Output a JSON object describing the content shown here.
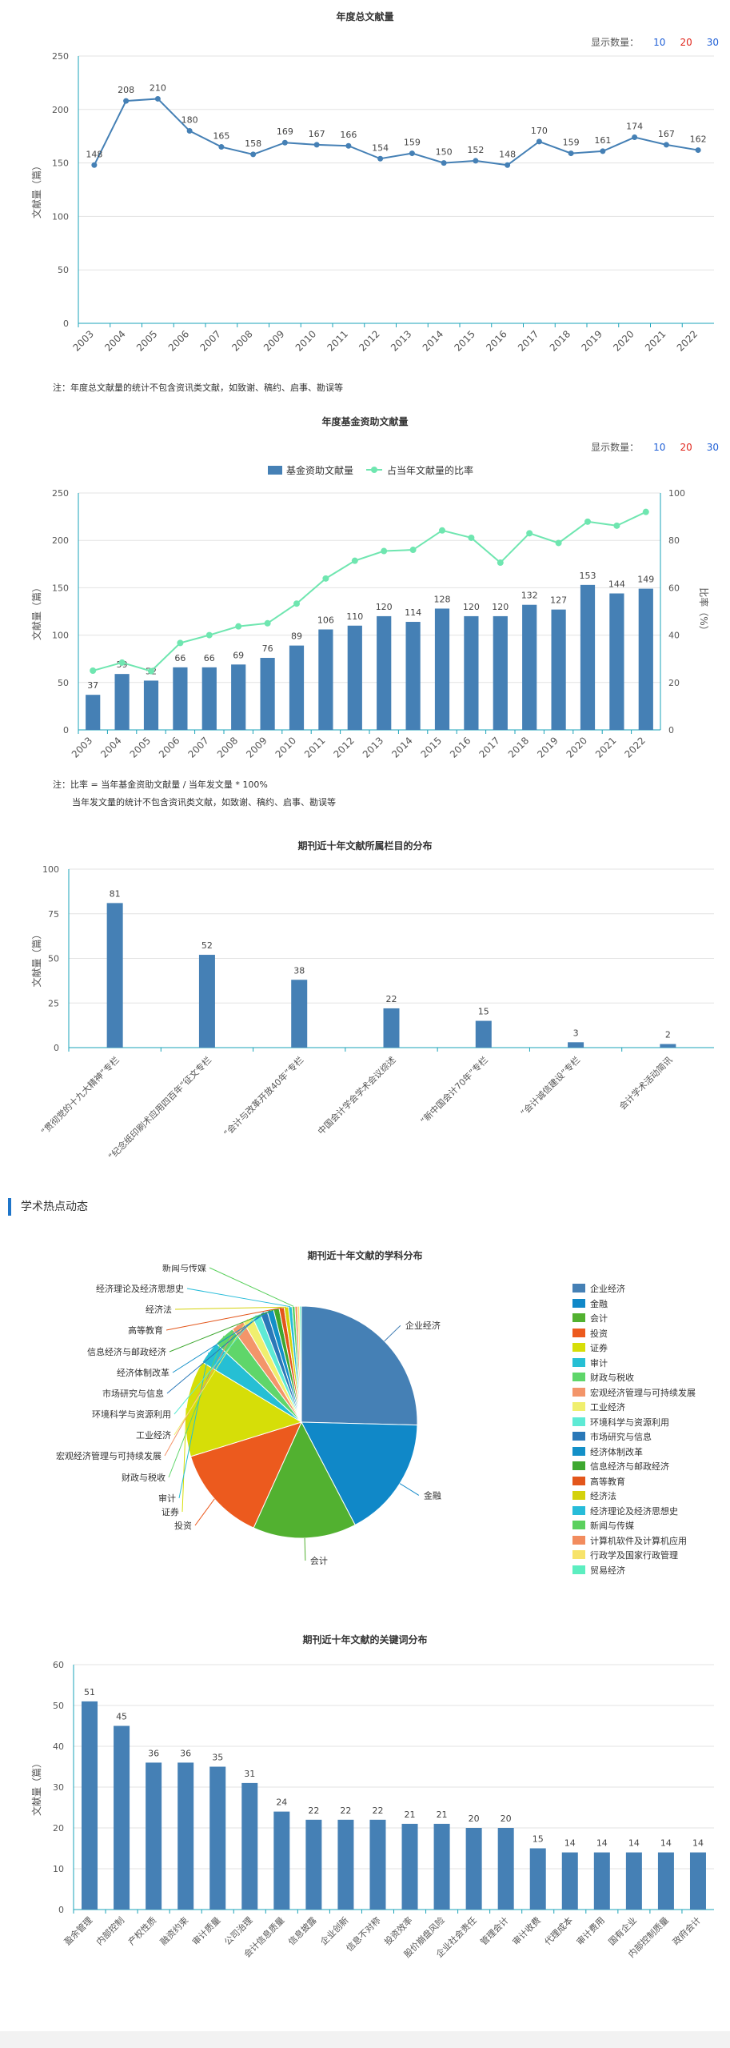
{
  "counts": {
    "label": "显示数量：",
    "options": [
      {
        "label": "10",
        "color": "#1f5fd6"
      },
      {
        "label": "20",
        "color": "#e0251b"
      },
      {
        "label": "30",
        "color": "#1f5fd6"
      }
    ]
  },
  "colors": {
    "primary": "#4580b5",
    "line": "#4580b5",
    "ratio": "#6fe6b0",
    "axis": "#1aa3b8",
    "grid": "#e3e3e3"
  },
  "section_heading": "学术热点动态",
  "chart_data": [
    {
      "id": "total",
      "type": "line",
      "title": "年度总文献量",
      "ylabel": "文献量（篇）",
      "ylim": [
        0,
        250
      ],
      "yticks": [
        0,
        50,
        100,
        150,
        200,
        250
      ],
      "x": [
        "2003",
        "2004",
        "2005",
        "2006",
        "2007",
        "2008",
        "2009",
        "2010",
        "2011",
        "2012",
        "2013",
        "2014",
        "2015",
        "2016",
        "2017",
        "2018",
        "2019",
        "2020",
        "2021",
        "2022"
      ],
      "values": [
        148,
        208,
        210,
        180,
        165,
        158,
        169,
        167,
        166,
        154,
        159,
        150,
        152,
        148,
        170,
        159,
        161,
        174,
        167,
        162
      ],
      "note": "注：年度总文献量的统计不包含资讯类文献，如致谢、稿约、启事、勘误等"
    },
    {
      "id": "fund",
      "type": "bar+line",
      "title": "年度基金资助文献量",
      "ylabel": "文献量（篇）",
      "y2label": "比率（%）",
      "ylim": [
        0,
        250
      ],
      "yticks": [
        0,
        50,
        100,
        150,
        200,
        250
      ],
      "y2lim": [
        0,
        100
      ],
      "y2ticks": [
        0,
        20,
        40,
        60,
        80,
        100
      ],
      "x": [
        "2003",
        "2004",
        "2005",
        "2006",
        "2007",
        "2008",
        "2009",
        "2010",
        "2011",
        "2012",
        "2013",
        "2014",
        "2015",
        "2016",
        "2017",
        "2018",
        "2019",
        "2020",
        "2021",
        "2022"
      ],
      "series": [
        {
          "name": "基金资助文献量",
          "type": "bar",
          "values": [
            37,
            59,
            52,
            66,
            66,
            69,
            76,
            89,
            106,
            110,
            120,
            114,
            128,
            120,
            120,
            132,
            127,
            153,
            144,
            149
          ]
        },
        {
          "name": "占当年文献量的比率",
          "type": "line",
          "values": [
            25,
            28.4,
            24.8,
            36.7,
            40,
            43.7,
            45,
            53.3,
            63.9,
            71.4,
            75.5,
            76,
            84.2,
            81.1,
            70.6,
            83,
            78.9,
            87.9,
            86.2,
            92
          ]
        }
      ],
      "labels_shown": [
        37,
        59,
        52,
        66,
        66,
        69,
        76,
        89,
        106,
        110,
        120,
        114,
        128,
        120,
        120,
        132,
        127,
        153,
        144,
        149
      ],
      "note_lines": [
        "注：比率 = 当年基金资助文献量 / 当年发文量 * 100%",
        "当年发文量的统计不包含资讯类文献，如致谢、稿约、启事、勘误等"
      ]
    },
    {
      "id": "columns",
      "type": "bar",
      "title": "期刊近十年文献所属栏目的分布",
      "ylabel": "文献量（篇）",
      "ylim": [
        0,
        100
      ],
      "yticks": [
        0,
        25,
        50,
        75,
        100
      ],
      "categories": [
        "“贯彻党的十九大精神”专栏",
        "“纪念纸印刷术应用四百年”征文专栏",
        "“会计与改革开放40年”专栏",
        "中国会计学会学术会议综述",
        "“新中国会计70年”专栏",
        "“会计诚信建设”专栏",
        "会计学术活动简讯"
      ],
      "values": [
        81,
        52,
        38,
        22,
        15,
        3,
        2
      ]
    },
    {
      "id": "subjects",
      "type": "pie",
      "title": "期刊近十年文献的学科分布",
      "slices": [
        {
          "name": "企业经济",
          "value": 25.5,
          "color": "#4580b5"
        },
        {
          "name": "金融",
          "value": 17,
          "color": "#1088c8"
        },
        {
          "name": "会计",
          "value": 14.5,
          "color": "#52b130"
        },
        {
          "name": "投资",
          "value": 13.5,
          "color": "#ec5a1e"
        },
        {
          "name": "证券",
          "value": 13.5,
          "color": "#d6de08"
        },
        {
          "name": "审计",
          "value": 3.2,
          "color": "#26bfd4"
        },
        {
          "name": "财政与税收",
          "value": 3,
          "color": "#5fd66a"
        },
        {
          "name": "宏观经济管理与可持续发展",
          "value": 1.8,
          "color": "#f3956a"
        },
        {
          "name": "工业经济",
          "value": 1.4,
          "color": "#f0ef6e"
        },
        {
          "name": "环境科学与资源利用",
          "value": 1.2,
          "color": "#5eead5"
        },
        {
          "name": "市场研究与信息",
          "value": 1,
          "color": "#2a78b8"
        },
        {
          "name": "经济体制改革",
          "value": 0.9,
          "color": "#1390c8"
        },
        {
          "name": "信息经济与邮政经济",
          "value": 0.8,
          "color": "#3ea830"
        },
        {
          "name": "高等教育",
          "value": 0.7,
          "color": "#e3561b"
        },
        {
          "name": "经济法",
          "value": 0.6,
          "color": "#d4d20c"
        },
        {
          "name": "经济理论及经济思想史",
          "value": 0.5,
          "color": "#27bcd9"
        },
        {
          "name": "新闻与传媒",
          "value": 0.4,
          "color": "#5bd05e"
        },
        {
          "name": "计算机软件及计算机应用",
          "value": 0.35,
          "color": "#f28c5e"
        },
        {
          "name": "行政学及国家行政管理",
          "value": 0.3,
          "color": "#f7e36a"
        },
        {
          "name": "贸易经济",
          "value": 0.25,
          "color": "#5ceec0"
        }
      ]
    },
    {
      "id": "keywords",
      "type": "bar",
      "title": "期刊近十年文献的关键词分布",
      "ylabel": "文献量（篇）",
      "ylim": [
        0,
        60
      ],
      "yticks": [
        0,
        10,
        20,
        30,
        40,
        50,
        60
      ],
      "categories": [
        "盈余管理",
        "内部控制",
        "产权性质",
        "融资约束",
        "审计质量",
        "公司治理",
        "会计信息质量",
        "信息披露",
        "企业创新",
        "信息不对称",
        "投资效率",
        "股价崩盘风险",
        "企业社会责任",
        "管理会计",
        "审计收费",
        "代理成本",
        "审计费用",
        "国有企业",
        "内部控制质量",
        "政府会计"
      ],
      "values": [
        51,
        45,
        36,
        36,
        35,
        31,
        24,
        22,
        22,
        22,
        21,
        21,
        20,
        20,
        15,
        14,
        14,
        14,
        14,
        14
      ]
    }
  ]
}
